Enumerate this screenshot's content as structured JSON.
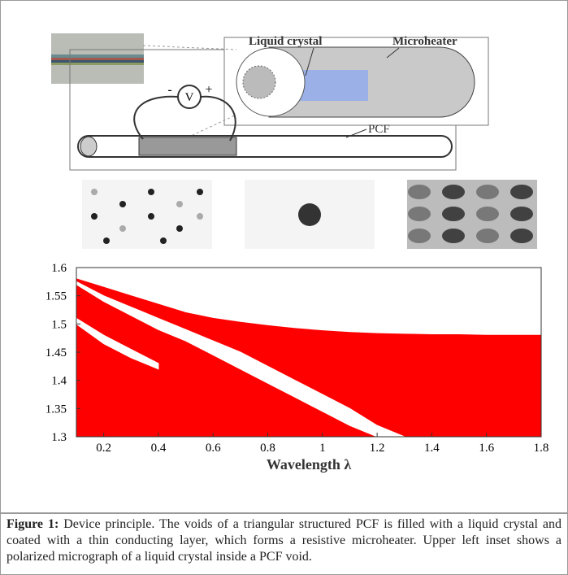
{
  "diagram": {
    "labels": {
      "liquid_crystal": "Liquid crystal",
      "microheater": "Microheater",
      "pcf": "PCF",
      "voltmeter": "V",
      "minus": "-",
      "plus": "+"
    }
  },
  "chart_data": {
    "type": "area",
    "xlabel": "Wavelength λ",
    "x": [
      0.1,
      0.2,
      0.3,
      0.4,
      0.5,
      0.6,
      0.7,
      0.8,
      0.9,
      1.0,
      1.1,
      1.2,
      1.3,
      1.4,
      1.5,
      1.6,
      1.7,
      1.8
    ],
    "series": [
      {
        "color": "#ff0000",
        "values": [
          1.58,
          1.565,
          1.55,
          1.535,
          1.52,
          1.51,
          1.503,
          1.497,
          1.492,
          1.488,
          1.485,
          1.483,
          1.482,
          1.481,
          1.481,
          1.48,
          1.48,
          1.48
        ]
      },
      {
        "color": "#ffffff",
        "values": [
          1.575,
          1.55,
          1.53,
          1.51,
          1.49,
          1.47,
          1.45,
          1.425,
          1.4,
          1.375,
          1.35,
          1.32,
          1.3,
          null,
          null,
          null,
          null,
          null
        ],
        "lower": [
          1.57,
          1.54,
          1.515,
          1.49,
          1.47,
          1.445,
          1.42,
          1.395,
          1.37,
          1.345,
          1.32,
          1.3,
          1.3,
          null,
          null,
          null,
          null,
          null
        ]
      },
      {
        "color": "#ffffff",
        "values": [
          1.51,
          1.48,
          1.455,
          1.43,
          null,
          null,
          null,
          null,
          null,
          null,
          null,
          null,
          null,
          null,
          null,
          null,
          null,
          null
        ],
        "lower": [
          1.5,
          1.465,
          1.44,
          1.42,
          null,
          null,
          null,
          null,
          null,
          null,
          null,
          null,
          null,
          null,
          null,
          null,
          null,
          null
        ]
      }
    ],
    "xlim": [
      0.1,
      1.8
    ],
    "xticks": [
      0.2,
      0.4,
      0.6,
      0.8,
      1,
      1.2,
      1.4,
      1.6,
      1.8
    ],
    "ylim": [
      1.3,
      1.6
    ],
    "yticks": [
      1.3,
      1.35,
      1.4,
      1.45,
      1.5,
      1.55,
      1.6
    ]
  },
  "caption": {
    "label": "Figure 1:",
    "text": " Device principle. The voids of a triangular structured PCF is filled with a liquid crystal and coated with a thin conducting layer, which forms a resistive microheater. Upper left inset shows a polarized micrograph of a liquid crystal inside a PCF void."
  }
}
